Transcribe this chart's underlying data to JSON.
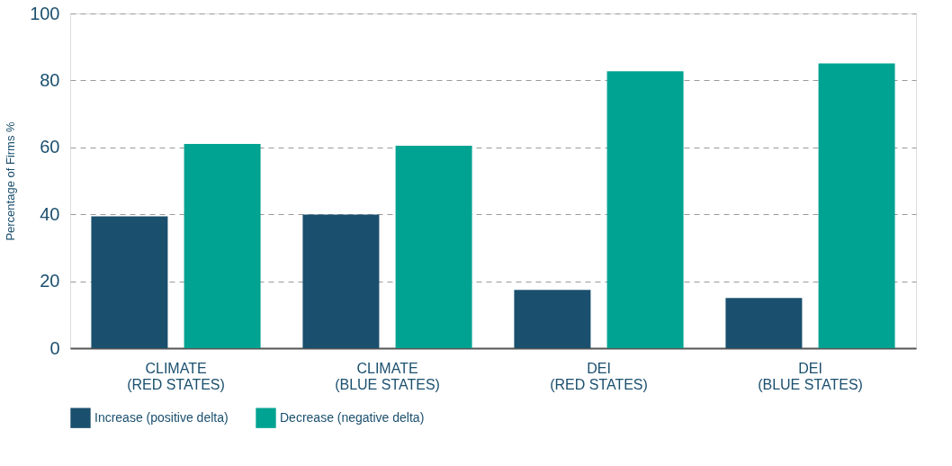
{
  "chart_data": {
    "type": "bar",
    "categories": [
      "CLIMATE\n(RED STATES)",
      "CLIMATE\n(BLUE STATES)",
      "DEI\n(RED STATES)",
      "DEI\n(BLUE STATES)"
    ],
    "series": [
      {
        "name": "Increase (positive delta)",
        "color": "#1a4f6e",
        "values": [
          39.4,
          39.9,
          17.4,
          15.0
        ]
      },
      {
        "name": "Decrease (negative delta)",
        "color": "#00a391",
        "values": [
          61.0,
          60.5,
          82.7,
          85.1
        ]
      }
    ],
    "ylabel": "Percentage of Firms %",
    "ylim": [
      0,
      100
    ],
    "yticks": [
      0,
      20,
      40,
      60,
      80,
      100
    ],
    "grid": "y",
    "legend": "bottom"
  }
}
